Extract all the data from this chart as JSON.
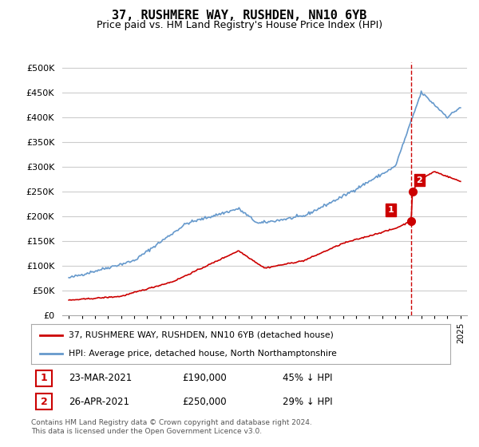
{
  "title": "37, RUSHMERE WAY, RUSHDEN, NN10 6YB",
  "subtitle": "Price paid vs. HM Land Registry's House Price Index (HPI)",
  "legend_line1": "37, RUSHMERE WAY, RUSHDEN, NN10 6YB (detached house)",
  "legend_line2": "HPI: Average price, detached house, North Northamptonshire",
  "annotation1_date": "23-MAR-2021",
  "annotation1_price": "£190,000",
  "annotation1_pct": "45% ↓ HPI",
  "annotation2_date": "26-APR-2021",
  "annotation2_price": "£250,000",
  "annotation2_pct": "29% ↓ HPI",
  "footer": "Contains HM Land Registry data © Crown copyright and database right 2024.\nThis data is licensed under the Open Government Licence v3.0.",
  "hpi_color": "#6699cc",
  "price_color": "#cc0000",
  "vline_color": "#cc0000",
  "marker_color": "#cc0000",
  "background_color": "#ffffff",
  "grid_color": "#cccccc",
  "annotation_box_color": "#cc0000",
  "ylim_min": 0,
  "ylim_max": 510000,
  "transaction1_year": 2021.22,
  "transaction1_price": 190000,
  "transaction2_year": 2021.32,
  "transaction2_price": 250000
}
